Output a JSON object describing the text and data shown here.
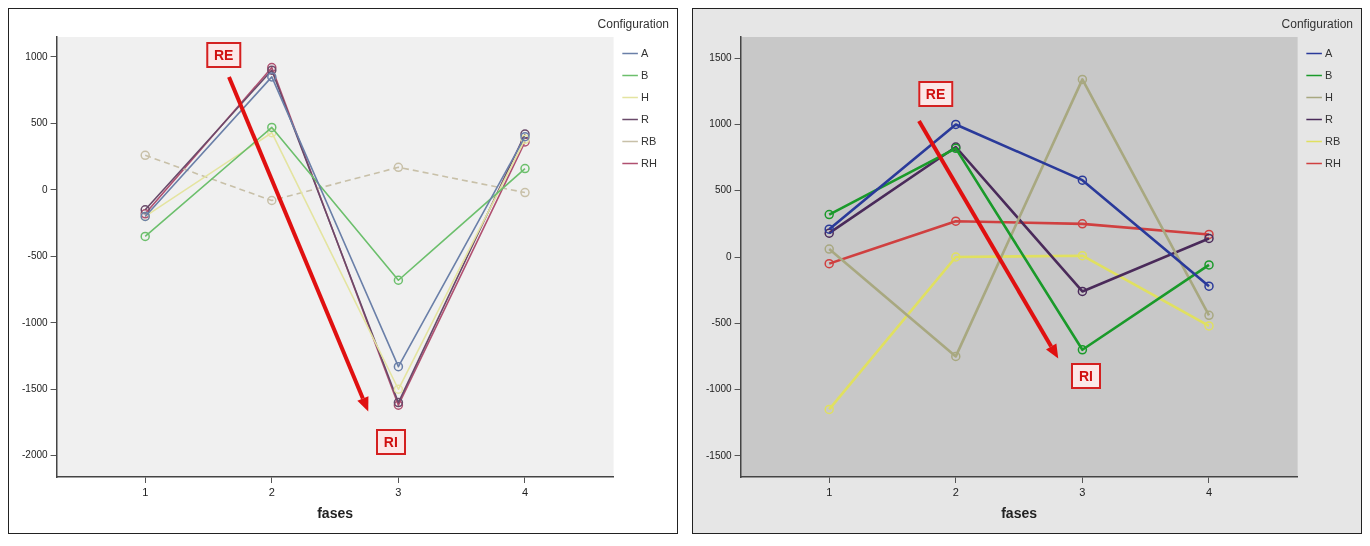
{
  "chart_data": [
    {
      "type": "line",
      "xlabel": "fases",
      "legend_title": "Configuration",
      "legend": "right",
      "marker": "circle",
      "line_style": "solid",
      "grid": false,
      "x": [
        1,
        2,
        3,
        4
      ],
      "xlim": [
        0.3,
        4.7
      ],
      "xticks": [
        1,
        2,
        3,
        4
      ],
      "ylim": [
        -2160,
        1150
      ],
      "yticks": [
        -2000,
        -1500,
        -1000,
        -500,
        0,
        500,
        1000
      ],
      "annotations": [
        "RE",
        "RI"
      ],
      "series": [
        {
          "name": "A",
          "color": "#6a7fa8",
          "values": [
            -200,
            850,
            -1330,
            400
          ]
        },
        {
          "name": "B",
          "color": "#6cbf6c",
          "values": [
            -350,
            470,
            -680,
            160
          ]
        },
        {
          "name": "H",
          "color": "#e4e4a0",
          "values": [
            -200,
            430,
            -1500,
            380
          ]
        },
        {
          "name": "R",
          "color": "#6a4a6a",
          "values": [
            -150,
            900,
            -1600,
            420
          ]
        },
        {
          "name": "RB",
          "color": "#c8c0a8",
          "line_style": "dashed",
          "values": [
            260,
            -80,
            170,
            -20
          ]
        },
        {
          "name": "RH",
          "color": "#b05070",
          "values": [
            -180,
            920,
            -1620,
            360
          ]
        }
      ]
    },
    {
      "type": "line",
      "xlabel": "fases",
      "legend_title": "Configuration",
      "legend": "right",
      "marker": "circle",
      "line_style": "solid",
      "grid": false,
      "x": [
        1,
        2,
        3,
        4
      ],
      "xlim": [
        0.3,
        4.7
      ],
      "xticks": [
        1,
        2,
        3,
        4
      ],
      "ylim": [
        -1660,
        1660
      ],
      "yticks": [
        -1500,
        -1000,
        -500,
        0,
        500,
        1000,
        1500
      ],
      "annotations": [
        "RE",
        "RI"
      ],
      "series": [
        {
          "name": "A",
          "color": "#2a3a9a",
          "values": [
            210,
            1000,
            580,
            -220
          ]
        },
        {
          "name": "B",
          "color": "#1a9a2a",
          "values": [
            320,
            820,
            -700,
            -60
          ]
        },
        {
          "name": "H",
          "color": "#a8a880",
          "values": [
            60,
            -750,
            1340,
            -440
          ]
        },
        {
          "name": "R",
          "color": "#4a2a5a",
          "values": [
            180,
            830,
            -260,
            140
          ]
        },
        {
          "name": "RB",
          "color": "#e0e060",
          "values": [
            -1150,
            0,
            10,
            -520
          ]
        },
        {
          "name": "RH",
          "color": "#d04040",
          "values": [
            -50,
            270,
            250,
            170
          ]
        }
      ]
    }
  ]
}
